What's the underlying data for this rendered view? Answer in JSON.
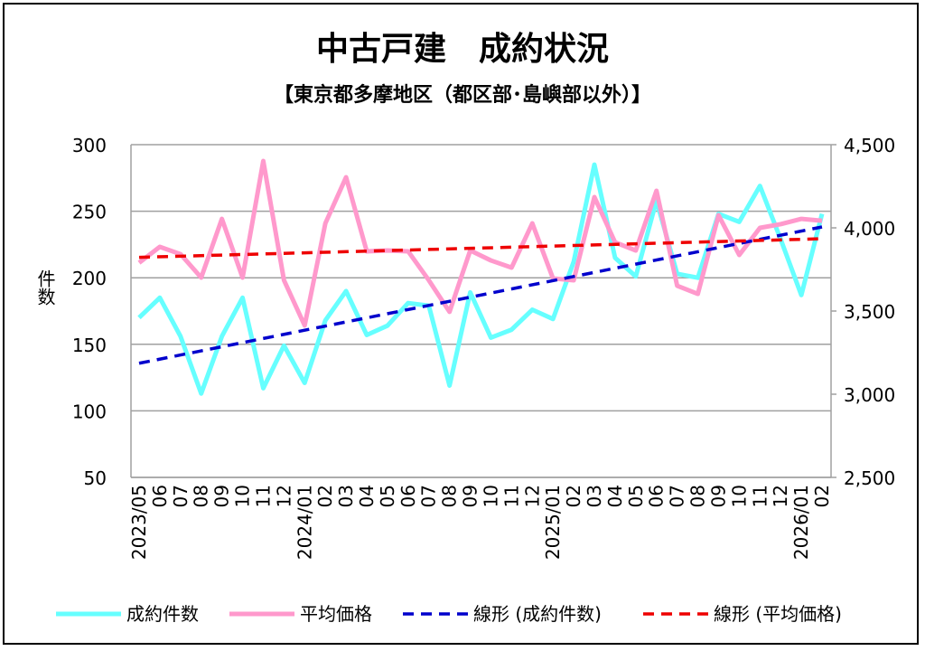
{
  "chart_data": {
    "type": "line",
    "title": "中古戸建　成約状況",
    "subtitle": "【東京都多摩地区（都区部･島嶼部以外）】",
    "ylabel": "件数",
    "ylabel2": "",
    "ylim": [
      50,
      300
    ],
    "ylim2": [
      2500,
      4500
    ],
    "yticks": [
      "300",
      "250",
      "200",
      "150",
      "100",
      "50"
    ],
    "yticks2": [
      "4,500",
      "4,000",
      "3,500",
      "3,000",
      "2,500"
    ],
    "grid": true,
    "legend_position": "bottom",
    "categories": [
      "2023/05",
      "06",
      "07",
      "08",
      "09",
      "10",
      "11",
      "12",
      "2024/01",
      "02",
      "03",
      "04",
      "05",
      "06",
      "07",
      "08",
      "09",
      "10",
      "11",
      "12",
      "2025/01",
      "02",
      "03",
      "04",
      "05",
      "06",
      "07",
      "08",
      "09",
      "10",
      "11",
      "12",
      "2026/01",
      "02"
    ],
    "series": [
      {
        "name": "成約件数",
        "axis": "left",
        "color": "#66ffff",
        "values": [
          170,
          185,
          156,
          113,
          156,
          185,
          117,
          149,
          121,
          168,
          190,
          157,
          164,
          181,
          179,
          119,
          189,
          155,
          161,
          176,
          169,
          212,
          285,
          215,
          201,
          258,
          203,
          200,
          248,
          242,
          269,
          229,
          187,
          248
        ]
      },
      {
        "name": "平均価格",
        "axis": "right",
        "color": "#ff99cc",
        "values": [
          3790,
          3886,
          3842,
          3701,
          4054,
          3701,
          4402,
          3685,
          3413,
          4027,
          4304,
          3859,
          3864,
          3859,
          3685,
          3495,
          3864,
          3804,
          3761,
          4027,
          3696,
          3685,
          4185,
          3913,
          3864,
          4223,
          3652,
          3603,
          4076,
          3837,
          4000,
          4022,
          4054,
          4043
        ]
      }
    ],
    "trendlines": [
      {
        "name": "線形 (成約件数)",
        "of": "成約件数",
        "color": "#0000cc"
      },
      {
        "name": "線形 (平均価格)",
        "of": "平均価格",
        "color": "#ee0000"
      }
    ],
    "grid_color": "#a0a0a0"
  }
}
